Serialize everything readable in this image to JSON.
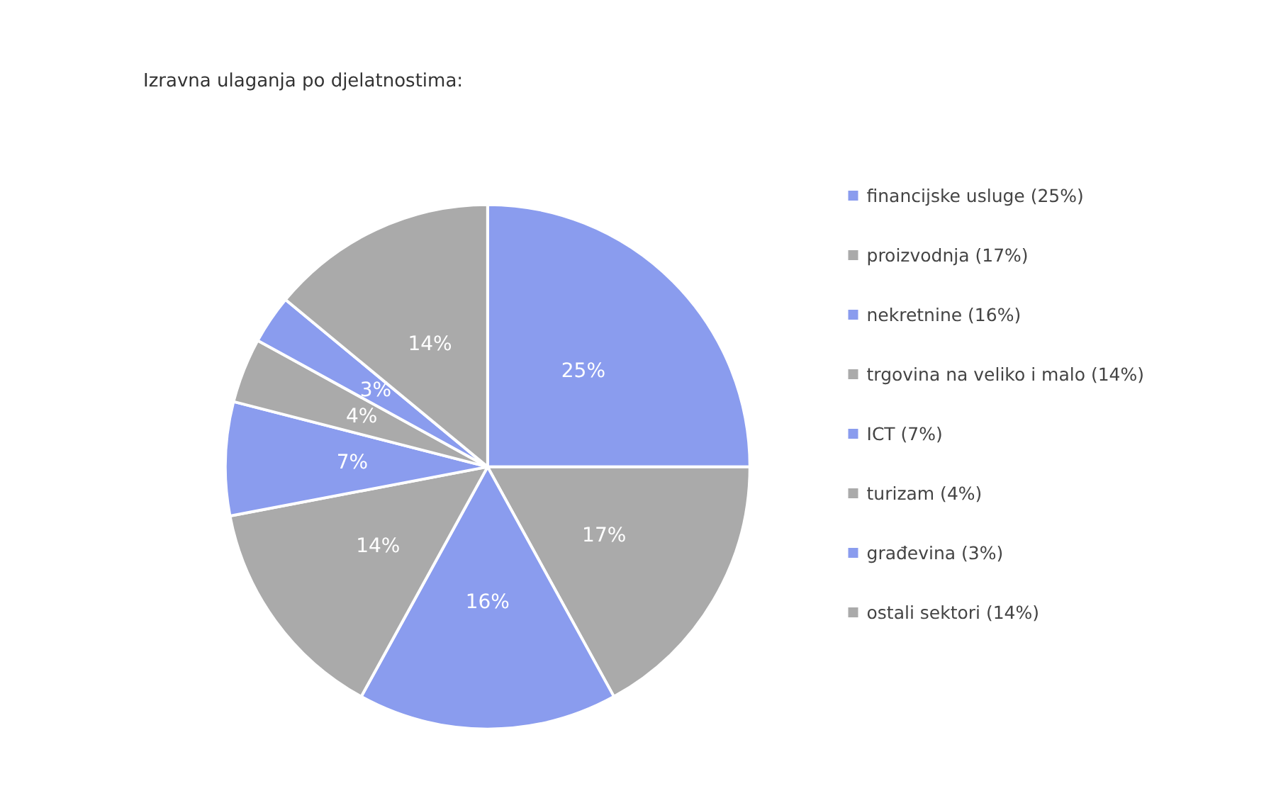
{
  "chart_data": {
    "type": "pie",
    "title": "Izravna ulaganja po djelatnostima:",
    "categories": [
      "financijske usluge (25%)",
      "proizvodnja (17%)",
      "nekretnine (16%)",
      "trgovina na veliko i malo (14%)",
      "ICT (7%)",
      "turizam (4%)",
      "građevina (3%)",
      "ostali sektori (14%)"
    ],
    "values": [
      25,
      17,
      16,
      14,
      7,
      4,
      3,
      14
    ],
    "value_labels": [
      "25%",
      "17%",
      "16%",
      "14%",
      "7%",
      "4%",
      "3%",
      "14%"
    ],
    "colors": [
      "#8a9cee",
      "#aaaaaa",
      "#8a9cee",
      "#aaaaaa",
      "#8a9cee",
      "#aaaaaa",
      "#8a9cee",
      "#aaaaaa"
    ],
    "legend": "right"
  }
}
